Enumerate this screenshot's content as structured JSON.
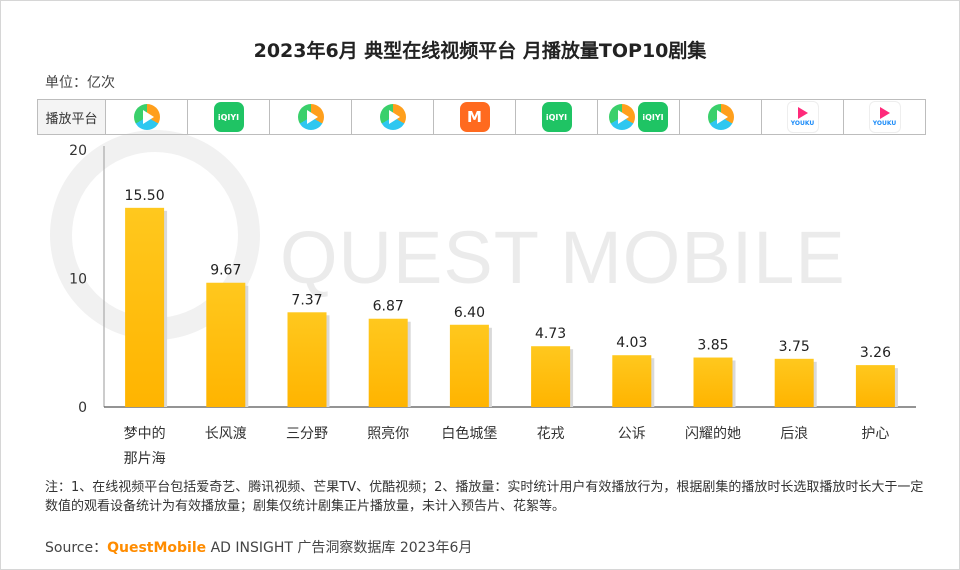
{
  "title": "2023年6月 典型在线视频平台 月播放量TOP10剧集",
  "unit": "单位：亿次",
  "platform_header": "播放平台",
  "platforms": [
    [
      "tencent-video-logo"
    ],
    [
      "iqiyi-logo"
    ],
    [
      "tencent-video-logo"
    ],
    [
      "tencent-video-logo"
    ],
    [
      "mango-tv-logo"
    ],
    [
      "iqiyi-logo"
    ],
    [
      "tencent-video-logo",
      "iqiyi-logo"
    ],
    [
      "tencent-video-logo"
    ],
    [
      "youku-logo"
    ],
    [
      "youku-logo"
    ]
  ],
  "logo_text": {
    "iqiyi": "iQIYI",
    "mango": "M",
    "youku": "YOUKU"
  },
  "watermark": "QUEST MOBILE",
  "chart_data": {
    "type": "bar",
    "categories": [
      "梦中的那片海",
      "长风渡",
      "三分野",
      "照亮你",
      "白色城堡",
      "花戎",
      "公诉",
      "闪耀的她",
      "后浪",
      "护心"
    ],
    "category_lines": [
      [
        "梦中的",
        "那片海"
      ],
      [
        "长风渡"
      ],
      [
        "三分野"
      ],
      [
        "照亮你"
      ],
      [
        "白色城堡"
      ],
      [
        "花戎"
      ],
      [
        "公诉"
      ],
      [
        "闪耀的她"
      ],
      [
        "后浪"
      ],
      [
        "护心"
      ]
    ],
    "values": [
      15.5,
      9.67,
      7.37,
      6.87,
      6.4,
      4.73,
      4.03,
      3.85,
      3.75,
      3.26
    ],
    "value_labels": [
      "15.50",
      "9.67",
      "7.37",
      "6.87",
      "6.40",
      "4.73",
      "4.03",
      "3.85",
      "3.75",
      "3.26"
    ],
    "yticks": [
      "0",
      "10",
      "20"
    ],
    "ylim": [
      0,
      20
    ],
    "bar_color_top": "#ffc81e",
    "bar_color_bottom": "#ffb400"
  },
  "note": "注：1、在线视频平台包括爱奇艺、腾讯视频、芒果TV、优酷视频；2、播放量：实时统计用户有效播放行为，根据剧集的播放时长选取播放时长大于一定数值的观看设备统计为有效播放量；剧集仅统计剧集正片播放量，未计入预告片、花絮等。",
  "source_label": "Source：",
  "source_brand": "QuestMobile",
  "source_rest": " AD INSIGHT 广告洞察数据库 2023年6月"
}
